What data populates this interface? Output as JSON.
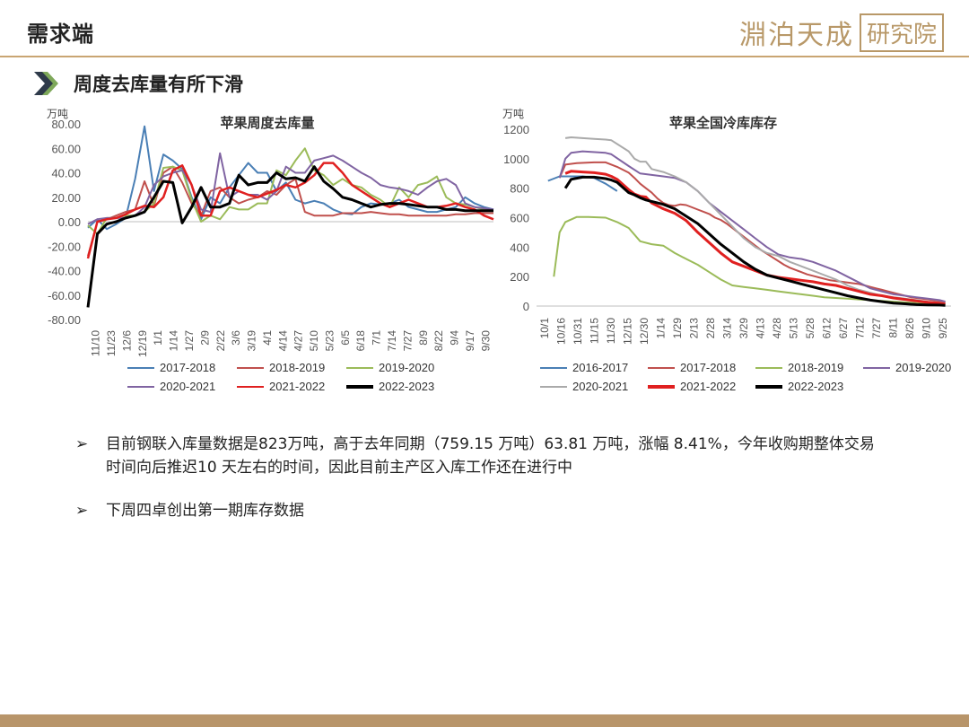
{
  "header": {
    "title": "需求端",
    "logo_text": "淵泊天成",
    "logo_box": "研究院"
  },
  "subheader": {
    "title": "周度去库量有所下滑",
    "icon": "double-chevron-right-icon"
  },
  "colors": {
    "accent": "#c9a572",
    "chevron_dark": "#2e3a4a",
    "chevron_green": "#7ea85a"
  },
  "chart_data": [
    {
      "type": "line",
      "title": "苹果周度去库量",
      "unit": "万吨",
      "ylim": [
        -80,
        80
      ],
      "yticks": [
        "80.00",
        "60.00",
        "40.00",
        "20.00",
        "0.00",
        "-20.00",
        "-40.00",
        "-60.00",
        "-80.00"
      ],
      "ytick_values": [
        80,
        60,
        40,
        20,
        0,
        -20,
        -40,
        -60,
        -80
      ],
      "x_labels": [
        "11/10",
        "11/23",
        "12/6",
        "12/19",
        "1/1",
        "1/14",
        "1/27",
        "2/9",
        "2/22",
        "3/6",
        "3/19",
        "4/1",
        "4/14",
        "4/27",
        "5/10",
        "5/23",
        "6/5",
        "6/18",
        "7/1",
        "7/14",
        "7/27",
        "8/9",
        "8/22",
        "9/4",
        "9/17",
        "9/30"
      ],
      "series": [
        {
          "name": "2017-2018",
          "color": "#4a7fb5",
          "width": 2,
          "values": [
            -5,
            2,
            -6,
            -2,
            3,
            35,
            78,
            25,
            55,
            50,
            43,
            20,
            2,
            20,
            15,
            28,
            38,
            48,
            40,
            40,
            25,
            32,
            18,
            15,
            17,
            15,
            10,
            7,
            6,
            12,
            15,
            14,
            15,
            18,
            12,
            10,
            8,
            8,
            10,
            12,
            20,
            15,
            12,
            10
          ]
        },
        {
          "name": "2018-2019",
          "color": "#c0504d",
          "width": 2,
          "values": [
            -28,
            0,
            2,
            5,
            8,
            10,
            33,
            13,
            40,
            45,
            32,
            15,
            5,
            25,
            28,
            20,
            15,
            18,
            20,
            25,
            22,
            30,
            35,
            8,
            5,
            5,
            5,
            7,
            7,
            7,
            8,
            7,
            6,
            6,
            5,
            5,
            5,
            5,
            5,
            6,
            6,
            7,
            7,
            7
          ]
        },
        {
          "name": "2019-2020",
          "color": "#9bbb59",
          "width": 2,
          "values": [
            -3,
            -10,
            3,
            3,
            5,
            5,
            8,
            15,
            44,
            45,
            42,
            18,
            0,
            5,
            2,
            12,
            10,
            10,
            15,
            15,
            42,
            38,
            50,
            60,
            42,
            38,
            30,
            35,
            30,
            28,
            22,
            18,
            12,
            28,
            20,
            30,
            32,
            37,
            20,
            15,
            14,
            12,
            10,
            9
          ]
        },
        {
          "name": "2020-2021",
          "color": "#8064a2",
          "width": 2,
          "values": [
            -2,
            2,
            3,
            3,
            3,
            5,
            12,
            30,
            37,
            40,
            42,
            30,
            10,
            8,
            56,
            20,
            25,
            22,
            22,
            18,
            25,
            45,
            40,
            40,
            50,
            52,
            54,
            50,
            45,
            40,
            36,
            30,
            28,
            27,
            25,
            22,
            28,
            33,
            35,
            30,
            15,
            12,
            11,
            10
          ]
        },
        {
          "name": "2021-2022",
          "color": "#e02020",
          "width": 2.5,
          "values": [
            -30,
            0,
            2,
            3,
            6,
            10,
            13,
            12,
            20,
            42,
            46,
            30,
            5,
            5,
            25,
            28,
            25,
            22,
            20,
            23,
            26,
            30,
            28,
            32,
            38,
            48,
            48,
            40,
            30,
            25,
            20,
            15,
            12,
            15,
            18,
            15,
            12,
            12,
            13,
            15,
            12,
            10,
            5,
            2
          ]
        },
        {
          "name": "2022-2023",
          "color": "#000000",
          "width": 3,
          "values": [
            -70,
            -10,
            -2,
            0,
            3,
            5,
            8,
            20,
            33,
            32,
            -1,
            12,
            28,
            12,
            12,
            15,
            38,
            30,
            32,
            32,
            40,
            35,
            36,
            33,
            45,
            33,
            27,
            20,
            18,
            15,
            12,
            14,
            15,
            15,
            14,
            13,
            12,
            12,
            10,
            10,
            9,
            9,
            9,
            9
          ]
        }
      ]
    },
    {
      "type": "line",
      "title": "苹果全国冷库库存",
      "unit": "万吨",
      "ylim": [
        0,
        1200
      ],
      "yticks": [
        "1200",
        "1000",
        "800",
        "600",
        "400",
        "200",
        "0"
      ],
      "ytick_values": [
        1200,
        1000,
        800,
        600,
        400,
        200,
        0
      ],
      "x_labels": [
        "10/1",
        "10/16",
        "10/31",
        "11/15",
        "11/30",
        "12/15",
        "12/30",
        "1/14",
        "1/29",
        "2/13",
        "2/28",
        "3/14",
        "3/29",
        "4/13",
        "4/28",
        "5/13",
        "5/28",
        "6/12",
        "6/27",
        "7/12",
        "7/27",
        "8/11",
        "8/26",
        "9/10",
        "9/25"
      ],
      "series": [
        {
          "name": "2016-2017",
          "color": "#4a7fb5",
          "width": 2,
          "x": [
            10,
            20,
            30,
            40,
            50,
            55,
            60,
            70
          ],
          "values": [
            850,
            880,
            880,
            880,
            870,
            850,
            830,
            780
          ]
        },
        {
          "name": "2017-2018",
          "color": "#c0504d",
          "width": 2,
          "x": [
            20,
            25,
            35,
            50,
            60,
            65,
            70,
            80,
            85,
            90,
            95,
            100,
            105,
            110,
            115,
            120,
            125,
            130,
            135,
            140,
            145,
            150,
            155,
            160,
            165,
            170,
            175,
            180,
            185,
            190,
            195,
            200,
            205,
            210,
            215,
            220,
            225,
            230,
            235,
            240,
            245,
            250,
            255,
            260,
            265,
            270,
            275,
            280,
            285,
            290,
            295,
            300,
            305,
            310,
            315,
            320,
            325,
            330,
            335,
            340,
            345,
            350,
            355
          ],
          "values": [
            870,
            960,
            970,
            975,
            975,
            960,
            945,
            905,
            870,
            830,
            800,
            770,
            730,
            700,
            685,
            680,
            690,
            685,
            670,
            655,
            640,
            625,
            600,
            585,
            560,
            530,
            500,
            470,
            440,
            410,
            380,
            355,
            330,
            305,
            280,
            260,
            245,
            230,
            215,
            205,
            195,
            185,
            175,
            170,
            165,
            160,
            155,
            150,
            140,
            130,
            120,
            110,
            100,
            90,
            80,
            70,
            60,
            55,
            50,
            45,
            40,
            35,
            30
          ]
        },
        {
          "name": "2018-2019",
          "color": "#9bbb59",
          "width": 2,
          "x": [
            15,
            20,
            25,
            35,
            45,
            60,
            70,
            75,
            80,
            90,
            100,
            110,
            120,
            130,
            140,
            150,
            160,
            170,
            180,
            190,
            200,
            210,
            220,
            230,
            240,
            250,
            260,
            270,
            280,
            290,
            300,
            310,
            320,
            330,
            340,
            350,
            355
          ],
          "values": [
            200,
            500,
            570,
            605,
            605,
            600,
            570,
            550,
            530,
            440,
            420,
            410,
            360,
            320,
            280,
            230,
            180,
            140,
            130,
            120,
            110,
            100,
            90,
            80,
            70,
            60,
            55,
            50,
            45,
            40,
            35,
            30,
            25,
            20,
            15,
            10,
            10
          ]
        },
        {
          "name": "2019-2020",
          "color": "#8064a2",
          "width": 2,
          "x": [
            20,
            25,
            30,
            40,
            60,
            65,
            80,
            90,
            100,
            110,
            120,
            130,
            140,
            150,
            160,
            170,
            180,
            190,
            200,
            210,
            220,
            230,
            240,
            250,
            260,
            270,
            280,
            290,
            300,
            310,
            320,
            330,
            340,
            350,
            355
          ],
          "values": [
            870,
            1000,
            1040,
            1050,
            1040,
            1030,
            950,
            900,
            890,
            880,
            870,
            840,
            780,
            700,
            640,
            580,
            520,
            460,
            400,
            350,
            330,
            320,
            300,
            270,
            240,
            200,
            160,
            120,
            100,
            80,
            70,
            60,
            50,
            40,
            30
          ]
        },
        {
          "name": "2020-2021",
          "color": "#aaaaaa",
          "width": 2,
          "x": [
            25,
            30,
            40,
            50,
            60,
            65,
            80,
            85,
            90,
            95,
            100,
            105,
            110,
            120,
            130,
            140,
            150,
            160,
            170,
            180,
            190,
            200,
            210,
            220,
            230,
            240,
            250,
            260,
            270,
            280,
            290,
            300,
            310,
            320,
            330,
            340,
            350,
            355
          ],
          "values": [
            1140,
            1145,
            1140,
            1135,
            1130,
            1125,
            1050,
            1000,
            980,
            980,
            930,
            920,
            910,
            880,
            840,
            780,
            700,
            620,
            540,
            460,
            400,
            360,
            340,
            300,
            270,
            240,
            210,
            180,
            140,
            110,
            90,
            70,
            60,
            50,
            40,
            30,
            25,
            20
          ]
        },
        {
          "name": "2021-2022",
          "color": "#e02020",
          "width": 3,
          "x": [
            25,
            30,
            40,
            50,
            60,
            65,
            70,
            80,
            85,
            90,
            95,
            100,
            105,
            110,
            120,
            130,
            140,
            150,
            160,
            170,
            180,
            190,
            200,
            210,
            220,
            230,
            240,
            250,
            260,
            270,
            280,
            290,
            300,
            310,
            320,
            330,
            340,
            350,
            355
          ],
          "values": [
            900,
            915,
            910,
            905,
            895,
            880,
            860,
            790,
            760,
            745,
            740,
            700,
            680,
            660,
            630,
            580,
            500,
            430,
            360,
            300,
            270,
            240,
            210,
            195,
            185,
            175,
            165,
            150,
            140,
            120,
            100,
            80,
            70,
            55,
            45,
            35,
            25,
            20,
            15
          ]
        },
        {
          "name": "2022-2023",
          "color": "#000000",
          "width": 3,
          "x": [
            25,
            30,
            40,
            50,
            60,
            65,
            70,
            80,
            85,
            90,
            95,
            100,
            105,
            110,
            120,
            130,
            140,
            150,
            160,
            170,
            180,
            190,
            200,
            210,
            220,
            230,
            240,
            250,
            260,
            270,
            280,
            290,
            300,
            310,
            320,
            330,
            340,
            350,
            355
          ],
          "values": [
            800,
            860,
            875,
            875,
            865,
            855,
            840,
            770,
            755,
            735,
            720,
            710,
            700,
            690,
            660,
            610,
            560,
            490,
            420,
            360,
            300,
            250,
            210,
            190,
            170,
            150,
            130,
            110,
            90,
            70,
            55,
            40,
            30,
            20,
            15,
            10,
            8,
            7,
            5
          ]
        }
      ],
      "x_range": [
        0,
        360
      ]
    }
  ],
  "bullets": [
    {
      "text": "目前钢联入库量数据是823万吨，高于去年同期（759.15 万吨）63.81 万吨，涨幅 8.41%，今年收购期整体交易时间向后推迟10 天左右的时间，因此目前主产区入库工作还在进行中"
    },
    {
      "text": "下周四卓创出第一期库存数据"
    }
  ],
  "bullet_mark": "➢"
}
